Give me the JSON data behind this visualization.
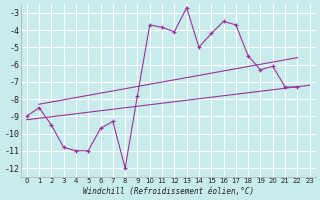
{
  "background_color": "#c8ecec",
  "grid_color": "#ffffff",
  "line_color": "#993399",
  "xlabel": "Windchill (Refroidissement éolien,°C)",
  "xlim": [
    -0.5,
    23.5
  ],
  "ylim": [
    -12.5,
    -2.5
  ],
  "yticks": [
    -12,
    -11,
    -10,
    -9,
    -8,
    -7,
    -6,
    -5,
    -4,
    -3
  ],
  "xticks": [
    0,
    1,
    2,
    3,
    4,
    5,
    6,
    7,
    8,
    9,
    10,
    11,
    12,
    13,
    14,
    15,
    16,
    17,
    18,
    19,
    20,
    21,
    22,
    23
  ],
  "trend1_x": [
    1,
    22
  ],
  "trend1_y": [
    -8.3,
    -5.6
  ],
  "trend2_x": [
    0,
    23
  ],
  "trend2_y": [
    -9.2,
    -7.2
  ],
  "series_x": [
    0,
    1,
    2,
    3,
    4,
    5,
    6,
    7,
    8,
    9,
    10,
    11,
    12,
    13,
    14,
    15,
    16,
    17,
    18,
    19,
    20,
    21,
    22
  ],
  "series_y": [
    -9.0,
    -8.5,
    -9.5,
    -10.8,
    -11.0,
    -11.0,
    -9.7,
    -9.3,
    -12.0,
    -7.8,
    -3.7,
    -3.85,
    -4.1,
    -2.7,
    -5.0,
    -4.2,
    -3.5,
    -3.7,
    -5.5,
    -6.3,
    -6.1,
    -7.3,
    -7.3
  ]
}
